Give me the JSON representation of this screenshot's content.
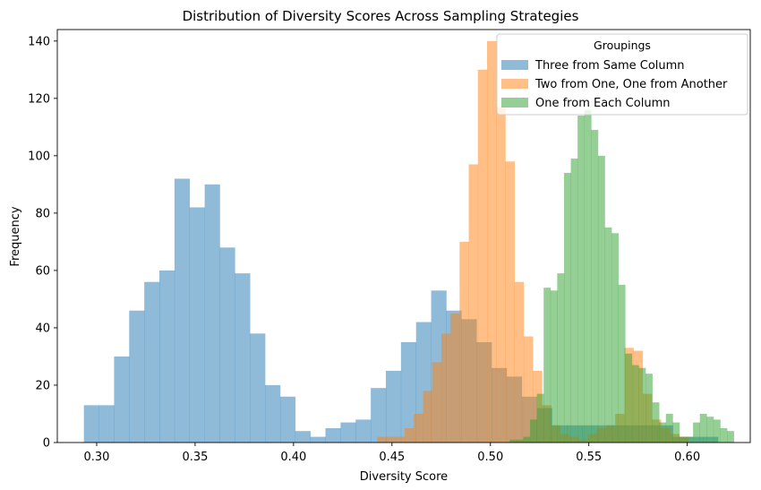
{
  "chart_data": {
    "type": "histogram",
    "title": "Distribution of Diversity Scores Across Sampling Strategies",
    "xlabel": "Diversity Score",
    "ylabel": "Frequency",
    "xlim": [
      0.28,
      0.632
    ],
    "ylim": [
      0,
      144
    ],
    "xticks": [
      0.3,
      0.35,
      0.4,
      0.45,
      0.5,
      0.55,
      0.6
    ],
    "xtick_labels": [
      "0.30",
      "0.35",
      "0.40",
      "0.45",
      "0.50",
      "0.55",
      "0.60"
    ],
    "yticks": [
      0,
      20,
      40,
      60,
      80,
      100,
      120,
      140
    ],
    "ytick_labels": [
      "0",
      "20",
      "40",
      "60",
      "80",
      "100",
      "120",
      "140"
    ],
    "grid": false,
    "legend": {
      "title": "Groupings",
      "placement": "top-right"
    },
    "bar_alpha": 0.5,
    "series": [
      {
        "name": "Three from Same Column",
        "color": "#1f77b4",
        "bin_start": 0.2935,
        "bin_width": 0.00767,
        "values": [
          13,
          13,
          30,
          46,
          56,
          60,
          92,
          82,
          90,
          68,
          59,
          38,
          20,
          16,
          4,
          2,
          5,
          7,
          8,
          19,
          25,
          35,
          42,
          53,
          46,
          43,
          35,
          26,
          23,
          16,
          12,
          6,
          6,
          6,
          6,
          6,
          6,
          6,
          6,
          2,
          2,
          2
        ]
      },
      {
        "name": "Two from One, One from Another",
        "color": "#ff7f0e",
        "bin_start": 0.4425,
        "bin_width": 0.00465,
        "values": [
          2,
          2,
          2,
          5,
          10,
          18,
          28,
          38,
          45,
          70,
          97,
          130,
          140,
          117,
          98,
          56,
          37,
          25,
          13,
          6,
          3,
          2,
          1,
          3,
          5,
          6,
          10,
          33,
          32,
          17,
          8,
          5,
          3,
          2
        ]
      },
      {
        "name": "One from Each Column",
        "color": "#2ca02c",
        "bin_start": 0.5098,
        "bin_width": 0.00345,
        "values": [
          1,
          1,
          2,
          8,
          17,
          54,
          53,
          59,
          94,
          99,
          114,
          116,
          109,
          100,
          75,
          73,
          55,
          31,
          27,
          26,
          24,
          14,
          7,
          10,
          7,
          2,
          2,
          7,
          10,
          9,
          8,
          5,
          4
        ]
      }
    ]
  }
}
